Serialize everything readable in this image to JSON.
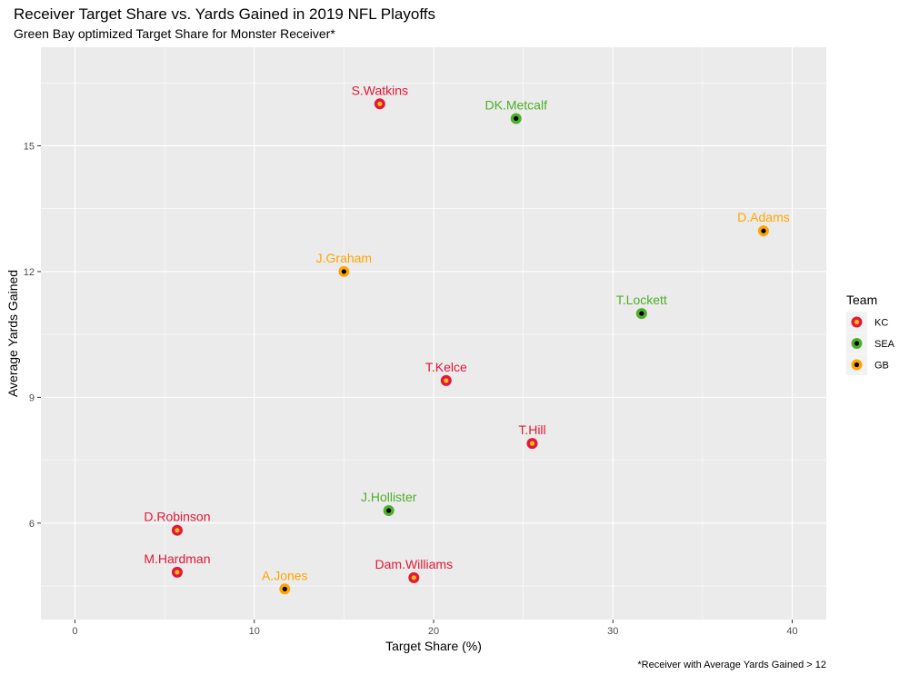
{
  "chart_data": {
    "type": "scatter",
    "title": "Receiver Target Share vs. Yards Gained in 2019 NFL Playoffs",
    "subtitle": "Green Bay optimized Target Share for Monster Receiver*",
    "xlabel": "Target Share (%)",
    "ylabel": "Average Yards Gained",
    "caption": "*Receiver with Average Yards Gained > 12",
    "xlim": [
      -1.9,
      41.9
    ],
    "ylim": [
      3.7,
      17.35
    ],
    "xticks": [
      0,
      10,
      20,
      30,
      40
    ],
    "yticks": [
      6,
      9,
      12,
      15
    ],
    "grid": true,
    "legend": {
      "title": "Team",
      "position": "right",
      "entries": [
        {
          "name": "KC",
          "outer": "#e31837",
          "inner": "#ffb81c"
        },
        {
          "name": "SEA",
          "outer": "#4db028",
          "inner": "#000000"
        },
        {
          "name": "GB",
          "outer": "#ffa500",
          "inner": "#000000"
        }
      ]
    },
    "points": [
      {
        "label": "S.Watkins",
        "team": "KC",
        "x": 17.0,
        "y": 16.0
      },
      {
        "label": "DK.Metcalf",
        "team": "SEA",
        "x": 24.6,
        "y": 15.65
      },
      {
        "label": "D.Adams",
        "team": "GB",
        "x": 38.4,
        "y": 12.97
      },
      {
        "label": "J.Graham",
        "team": "GB",
        "x": 15.0,
        "y": 12.0
      },
      {
        "label": "T.Lockett",
        "team": "SEA",
        "x": 31.6,
        "y": 11.0
      },
      {
        "label": "T.Kelce",
        "team": "KC",
        "x": 20.7,
        "y": 9.4
      },
      {
        "label": "T.Hill",
        "team": "KC",
        "x": 25.5,
        "y": 7.9
      },
      {
        "label": "J.Hollister",
        "team": "SEA",
        "x": 17.5,
        "y": 6.3
      },
      {
        "label": "D.Robinson",
        "team": "KC",
        "x": 5.7,
        "y": 5.83
      },
      {
        "label": "M.Hardman",
        "team": "KC",
        "x": 5.7,
        "y": 4.83
      },
      {
        "label": "A.Jones",
        "team": "GB",
        "x": 11.7,
        "y": 4.43
      },
      {
        "label": "Dam.Williams",
        "team": "KC",
        "x": 18.9,
        "y": 4.7
      }
    ]
  }
}
